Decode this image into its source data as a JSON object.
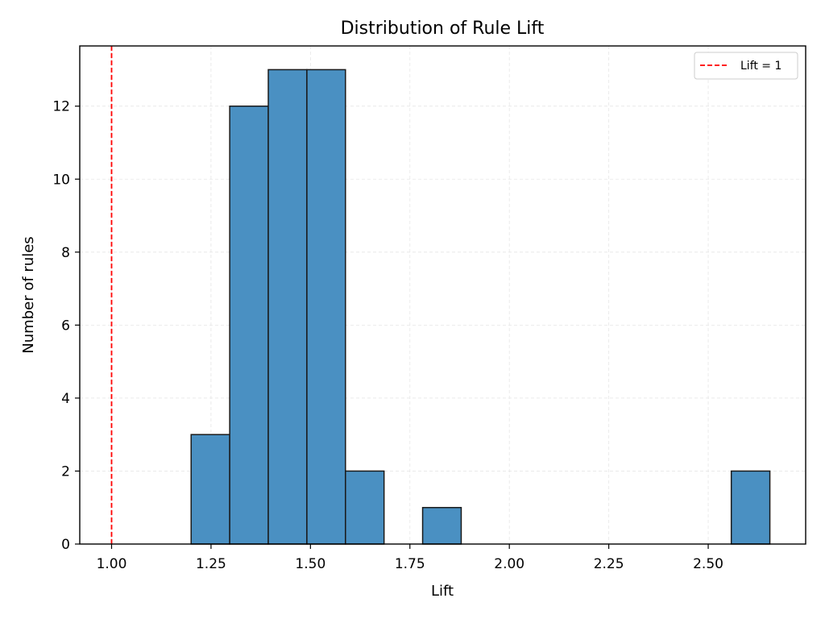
{
  "chart_data": {
    "type": "bar",
    "title": "Distribution of Rule Lift",
    "xlabel": "Lift",
    "ylabel": "Number of rules",
    "xlim": [
      0.92,
      2.745
    ],
    "ylim": [
      0,
      13.65
    ],
    "x_ticks": [
      1.0,
      1.25,
      1.5,
      1.75,
      2.0,
      2.25,
      2.5
    ],
    "x_tick_labels": [
      "1.00",
      "1.25",
      "1.50",
      "1.75",
      "2.00",
      "2.25",
      "2.50"
    ],
    "y_ticks": [
      0,
      2,
      4,
      6,
      8,
      10,
      12
    ],
    "y_tick_labels": [
      "0",
      "2",
      "4",
      "6",
      "8",
      "10",
      "12"
    ],
    "bins": [
      {
        "start": 1.2,
        "end": 1.297,
        "count": 3
      },
      {
        "start": 1.297,
        "end": 1.394,
        "count": 12
      },
      {
        "start": 1.394,
        "end": 1.491,
        "count": 13
      },
      {
        "start": 1.491,
        "end": 1.588,
        "count": 13
      },
      {
        "start": 1.588,
        "end": 1.685,
        "count": 2
      },
      {
        "start": 1.685,
        "end": 1.782,
        "count": 0
      },
      {
        "start": 1.782,
        "end": 1.879,
        "count": 1
      },
      {
        "start": 1.879,
        "end": 1.976,
        "count": 0
      },
      {
        "start": 1.976,
        "end": 2.073,
        "count": 0
      },
      {
        "start": 2.073,
        "end": 2.17,
        "count": 0
      },
      {
        "start": 2.17,
        "end": 2.267,
        "count": 0
      },
      {
        "start": 2.267,
        "end": 2.364,
        "count": 0
      },
      {
        "start": 2.364,
        "end": 2.461,
        "count": 0
      },
      {
        "start": 2.461,
        "end": 2.558,
        "count": 0
      },
      {
        "start": 2.558,
        "end": 2.655,
        "count": 2
      }
    ],
    "reference_line": {
      "x": 1.0,
      "label": "Lift = 1",
      "color": "#ff0000",
      "style": "dashed"
    },
    "bar_color": "#4a90c2",
    "bar_edge_color": "#1a1a1a",
    "grid": true,
    "legend_position": "top-right"
  }
}
